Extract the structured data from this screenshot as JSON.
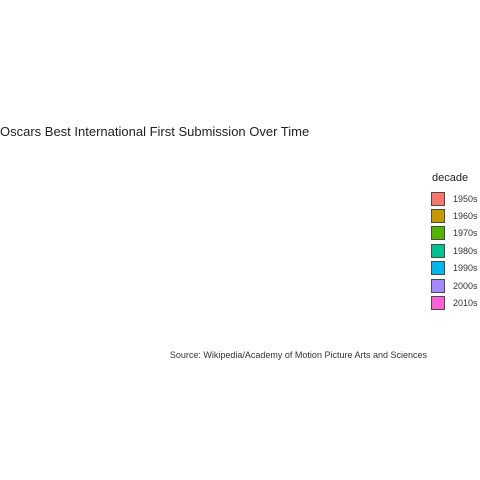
{
  "chart_data": {
    "type": "bar",
    "title": "Oscars Best International First Submission Over Time",
    "caption": "Source: Wikipedia/Academy of Motion Picture Arts and Sciences",
    "legend": {
      "title": "decade",
      "placement": "right",
      "entries": [
        {
          "label": "1950s",
          "color": "#F8766D"
        },
        {
          "label": "1960s",
          "color": "#C49A00"
        },
        {
          "label": "1970s",
          "color": "#53B400"
        },
        {
          "label": "1980s",
          "color": "#00C094"
        },
        {
          "label": "1990s",
          "color": "#00B6EB"
        },
        {
          "label": "2000s",
          "color": "#A58AFF"
        },
        {
          "label": "2010s",
          "color": "#FB61D7"
        }
      ]
    },
    "series": []
  }
}
